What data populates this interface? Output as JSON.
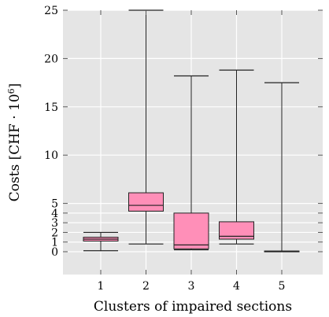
{
  "chart_data": {
    "type": "box",
    "title": "",
    "xlabel": "Clusters of impaired sections",
    "ylabel": "Costs [CHF · 10⁶]",
    "ylabel_base": "Costs [CHF · 10",
    "ylabel_exp": "6",
    "ylabel_end": "]",
    "ylim": [
      0,
      25
    ],
    "grid": true,
    "background": "#e5e5e5",
    "box_color": "#ff8fb8",
    "y_ticks": [
      {
        "value": 0,
        "label": "0"
      },
      {
        "value": 1,
        "label": "1"
      },
      {
        "value": 2,
        "label": "2"
      },
      {
        "value": 3,
        "label": "3"
      },
      {
        "value": 4,
        "label": "4"
      },
      {
        "value": 5,
        "label": "5"
      },
      {
        "value": 10,
        "label": "10"
      },
      {
        "value": 15,
        "label": "15"
      },
      {
        "value": 20,
        "label": "20"
      },
      {
        "value": 25,
        "label": "25"
      }
    ],
    "categories": [
      "1",
      "2",
      "3",
      "4",
      "5"
    ],
    "boxes": [
      {
        "category": "1",
        "min": 0.1,
        "q1": 1.1,
        "median": 1.3,
        "q3": 1.5,
        "max": 2.0
      },
      {
        "category": "2",
        "min": 0.8,
        "q1": 4.2,
        "median": 4.8,
        "q3": 6.1,
        "max": 25.0
      },
      {
        "category": "3",
        "min": 0.2,
        "q1": 0.3,
        "median": 0.7,
        "q3": 4.0,
        "max": 18.2
      },
      {
        "category": "4",
        "min": 0.8,
        "q1": 1.3,
        "median": 1.6,
        "q3": 3.1,
        "max": 18.8
      },
      {
        "category": "5",
        "min": 0.03,
        "q1": 0.03,
        "median": 0.05,
        "q3": 0.07,
        "max": 17.5
      }
    ]
  }
}
